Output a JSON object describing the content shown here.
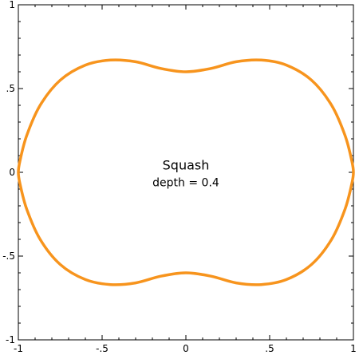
{
  "chart_data": {
    "type": "line",
    "title": "",
    "xlabel": "",
    "ylabel": "",
    "xlim": [
      -1,
      1
    ],
    "ylim": [
      -1,
      1
    ],
    "grid": false,
    "x_ticks": [
      {
        "value": -1,
        "label": "-1"
      },
      {
        "value": -0.5,
        "label": "-.5"
      },
      {
        "value": 0,
        "label": "0"
      },
      {
        "value": 0.5,
        "label": ".5"
      },
      {
        "value": 1,
        "label": "1"
      }
    ],
    "y_ticks": [
      {
        "value": 1,
        "label": "1"
      },
      {
        "value": 0.5,
        "label": ".5"
      },
      {
        "value": 0,
        "label": "0"
      },
      {
        "value": -0.5,
        "label": "-.5"
      },
      {
        "value": -1,
        "label": "-1"
      }
    ],
    "annotations": [
      {
        "text": "Squash",
        "x": 0,
        "y": 0.04
      },
      {
        "text": "depth = 0.4",
        "x": 0,
        "y": -0.06
      }
    ],
    "series": [
      {
        "color": "#F7941D",
        "closed": true,
        "points": [
          [
            0.0,
            0.6
          ],
          [
            0.15,
            0.62
          ],
          [
            0.3,
            0.66
          ],
          [
            0.45,
            0.67
          ],
          [
            0.6,
            0.64
          ],
          [
            0.75,
            0.55
          ],
          [
            0.87,
            0.4
          ],
          [
            0.95,
            0.22
          ],
          [
            0.99,
            0.07
          ],
          [
            1.0,
            0.0
          ],
          [
            0.99,
            -0.07
          ],
          [
            0.95,
            -0.22
          ],
          [
            0.87,
            -0.4
          ],
          [
            0.75,
            -0.55
          ],
          [
            0.6,
            -0.64
          ],
          [
            0.45,
            -0.67
          ],
          [
            0.3,
            -0.66
          ],
          [
            0.15,
            -0.62
          ],
          [
            0.0,
            -0.6
          ],
          [
            -0.15,
            -0.62
          ],
          [
            -0.3,
            -0.66
          ],
          [
            -0.45,
            -0.67
          ],
          [
            -0.6,
            -0.64
          ],
          [
            -0.75,
            -0.55
          ],
          [
            -0.87,
            -0.4
          ],
          [
            -0.95,
            -0.22
          ],
          [
            -0.99,
            -0.07
          ],
          [
            -1.0,
            0.0
          ],
          [
            -0.99,
            0.07
          ],
          [
            -0.95,
            0.22
          ],
          [
            -0.87,
            0.4
          ],
          [
            -0.75,
            0.55
          ],
          [
            -0.6,
            0.64
          ],
          [
            -0.45,
            0.67
          ],
          [
            -0.3,
            0.66
          ],
          [
            -0.15,
            0.62
          ]
        ]
      }
    ]
  }
}
